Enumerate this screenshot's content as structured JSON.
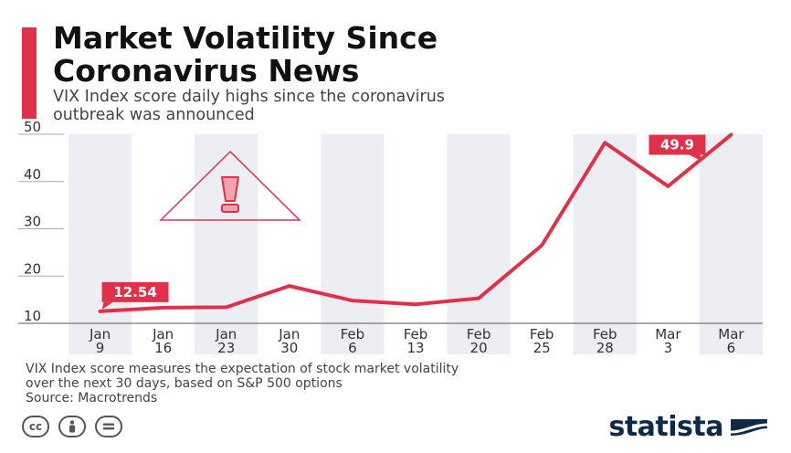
{
  "header": {
    "title_line1": "Market Volatility Since",
    "title_line2": "Coronavirus News",
    "subtitle_line1": "VIX Index score daily highs since the coronavirus",
    "subtitle_line2": "outbreak was announced"
  },
  "footer": {
    "note_line1": "VIX Index score measures the expectation of stock market volatility",
    "note_line2": "over the next 30 days, based on S&P 500 options",
    "source": "Source: Macrotrends",
    "brand": "statista",
    "license_icons": [
      "creative-commons-icon",
      "attribution-icon",
      "no-derivatives-icon"
    ]
  },
  "colors": {
    "accent": "#e0314b",
    "band": "#eceef4",
    "brand": "#0e2a47"
  },
  "chart_data": {
    "type": "line",
    "categories": [
      [
        "Jan",
        "9"
      ],
      [
        "Jan",
        "16"
      ],
      [
        "Jan",
        "23"
      ],
      [
        "Jan",
        "30"
      ],
      [
        "Feb",
        "6"
      ],
      [
        "Feb",
        "13"
      ],
      [
        "Feb",
        "20"
      ],
      [
        "Feb",
        "25"
      ],
      [
        "Feb",
        "28"
      ],
      [
        "Mar",
        "3"
      ],
      [
        "Mar",
        "6"
      ]
    ],
    "series": [
      {
        "values": [
          12.54,
          13.3,
          13.4,
          17.9,
          14.8,
          14.0,
          15.3,
          26.5,
          48.2,
          39.0,
          49.9
        ]
      }
    ],
    "ylim": [
      10,
      50
    ],
    "yticks": [
      10,
      20,
      30,
      40,
      50
    ],
    "grid": false,
    "annotations": [
      {
        "index": 0,
        "label": "12.54"
      },
      {
        "index": 10,
        "label": "49.9"
      }
    ]
  }
}
